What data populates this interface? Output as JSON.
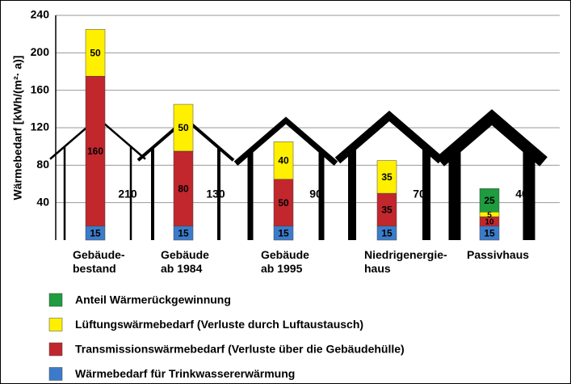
{
  "chart_data": {
    "type": "stacked_bar",
    "ylabel": "Wärmebedarf [kWh/(m²· a)]",
    "categories": [
      "Gebäude-\nbestand",
      "Gebäude\nab 1984",
      "Gebäude\nab 1995",
      "Niedrigenergie-\nhaus",
      "Passivhaus"
    ],
    "series": [
      {
        "name": "Wärmebedarf für Trinkwassererwärmung",
        "color": "#3b7bc9",
        "values": [
          15,
          15,
          15,
          15,
          15
        ]
      },
      {
        "name": "Transmissionswärmebedarf (Verluste über die Gebäudehülle)",
        "color": "#c1272d",
        "values": [
          160,
          80,
          50,
          35,
          10
        ]
      },
      {
        "name": "Lüftungswärmebedarf (Verluste durch Luftaustausch)",
        "color": "#fff000",
        "values": [
          50,
          50,
          40,
          35,
          5
        ]
      },
      {
        "name": "Anteil Wärmerückgewinnung",
        "color": "#1e9c3f",
        "values": [
          null,
          null,
          null,
          null,
          25
        ]
      }
    ],
    "house_values": [
      210,
      130,
      90,
      70,
      40
    ],
    "ylim": [
      0,
      240
    ],
    "yticks": [
      40,
      80,
      120,
      160,
      200,
      240
    ],
    "grid": true
  }
}
